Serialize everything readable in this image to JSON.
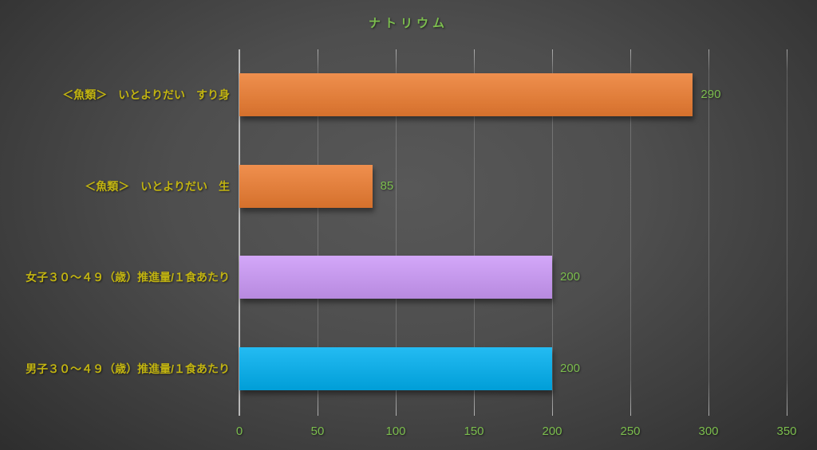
{
  "chart_data": {
    "type": "bar",
    "orientation": "horizontal",
    "title": "ナトリウム",
    "categories": [
      "＜魚類＞　いとよりだい　すり身",
      "＜魚類＞　いとよりだい　生",
      "女子３０～４９（歳）推進量/１食あたり",
      "男子３０～４９（歳）推進量/１食あたり"
    ],
    "values": [
      290,
      85,
      200,
      200
    ],
    "data_labels": [
      "290",
      "85",
      "200",
      "200"
    ],
    "bar_colors": [
      "#ED7D31",
      "#ED7D31",
      "#CC99F8",
      "#00B0F0"
    ],
    "xlabel": "",
    "ylabel": "",
    "xlim": [
      0,
      350
    ],
    "x_ticks": [
      "0",
      "50",
      "100",
      "150",
      "200",
      "250",
      "300",
      "350"
    ],
    "grid": "vertical-major",
    "legend": "none",
    "colors": {
      "title_text": "#7CBE4E",
      "category_text": "#C2B411",
      "value_text": "#7CBE4E",
      "tick_text": "#7CBE4E",
      "axis_line": "#B9B9B9"
    }
  }
}
